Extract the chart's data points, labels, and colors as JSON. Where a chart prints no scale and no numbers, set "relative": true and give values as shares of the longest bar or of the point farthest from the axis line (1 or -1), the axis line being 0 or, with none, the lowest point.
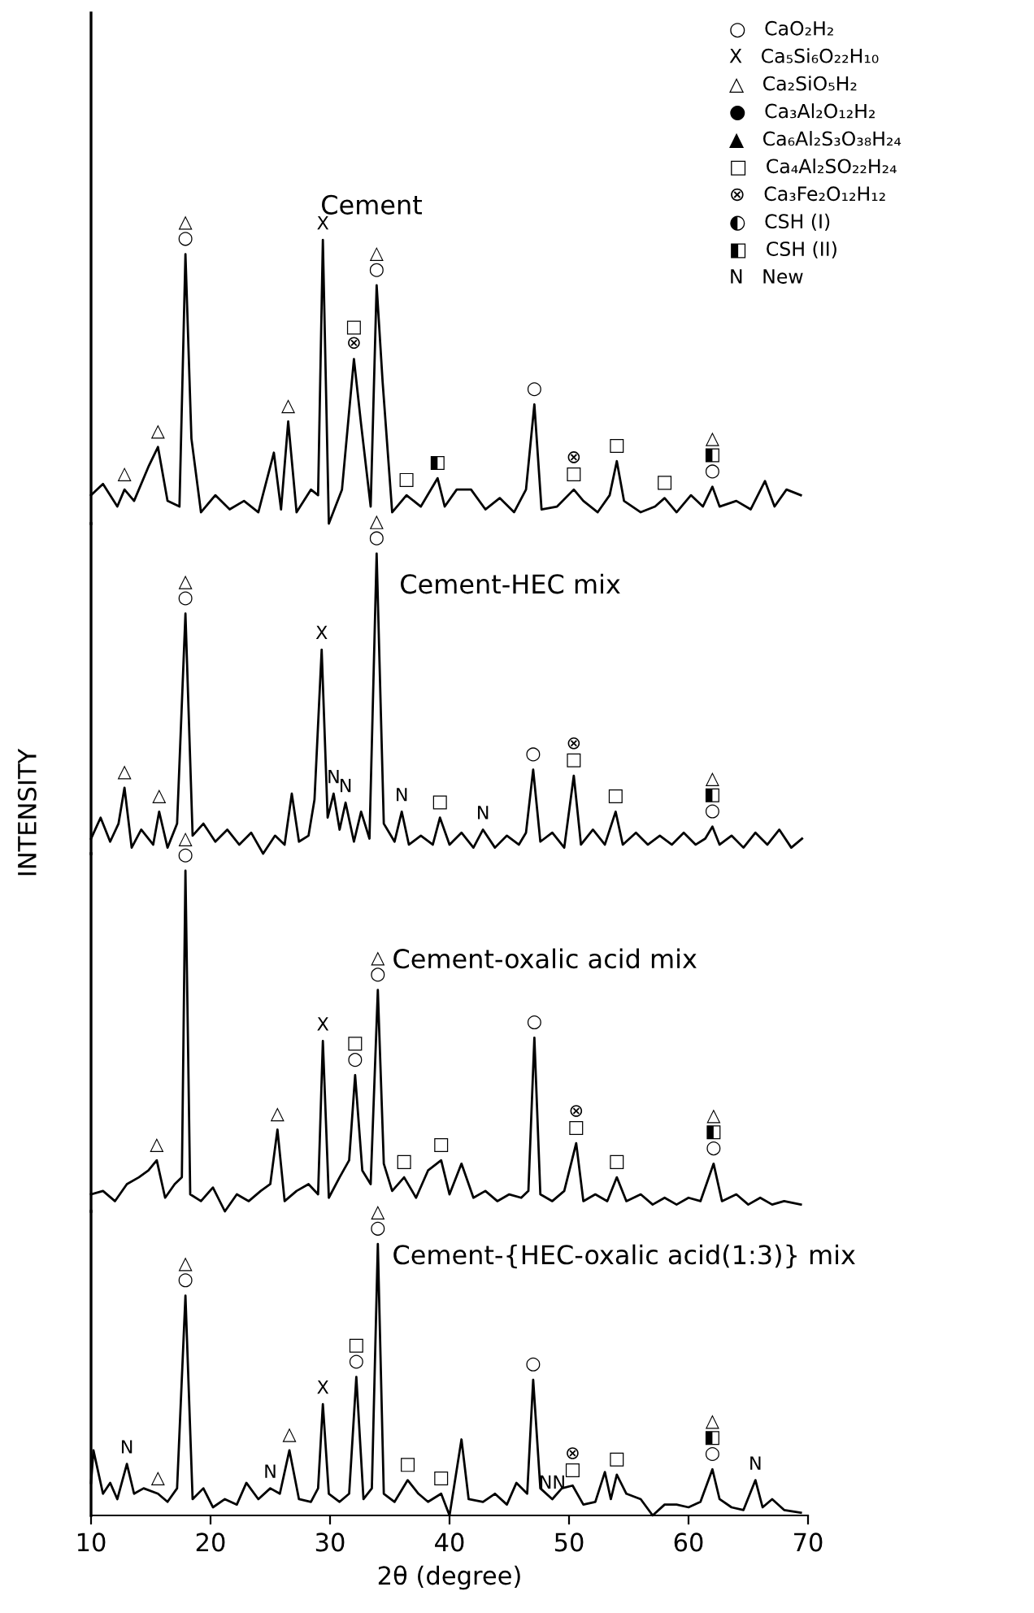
{
  "chart_data": [
    {
      "type": "line",
      "title": "Cement",
      "relative": true,
      "xlim": [
        10,
        70
      ],
      "xticks": [
        10,
        20,
        30,
        40,
        50,
        60,
        70
      ],
      "tick_labels": false,
      "series": [
        {
          "color": "#000000",
          "x": [
            10,
            11,
            12.2,
            12.8,
            13.6,
            14.8,
            15.6,
            16.4,
            17.4,
            17.9,
            18.4,
            19.2,
            20.4,
            21.6,
            22.8,
            24,
            25.3,
            25.9,
            26.5,
            27.2,
            28.4,
            29,
            29.4,
            29.9,
            31,
            32,
            32.6,
            33.4,
            33.9,
            34.4,
            35.2,
            36.4,
            37.6,
            39,
            39.6,
            40.6,
            41.8,
            43,
            44.2,
            45.4,
            46.4,
            47.1,
            47.7,
            49,
            50.4,
            51.2,
            52.4,
            53.4,
            54,
            54.6,
            56,
            57.2,
            58,
            59,
            60.2,
            61.2,
            62,
            62.6,
            64,
            65.2,
            66.4,
            67.2,
            68.2,
            69.4
          ],
          "values": [
            0.1,
            0.14,
            0.06,
            0.12,
            0.08,
            0.2,
            0.27,
            0.08,
            0.06,
            0.95,
            0.3,
            0.04,
            0.1,
            0.05,
            0.08,
            0.04,
            0.25,
            0.05,
            0.36,
            0.04,
            0.12,
            0.1,
            1.0,
            0,
            0.12,
            0.58,
            0.35,
            0.06,
            0.84,
            0.5,
            0.04,
            0.1,
            0.06,
            0.16,
            0.06,
            0.12,
            0.12,
            0.05,
            0.09,
            0.04,
            0.12,
            0.42,
            0.05,
            0.06,
            0.12,
            0.08,
            0.04,
            0.1,
            0.22,
            0.08,
            0.04,
            0.06,
            0.09,
            0.04,
            0.1,
            0.06,
            0.13,
            0.06,
            0.08,
            0.05,
            0.15,
            0.06,
            0.12,
            0.1
          ]
        }
      ],
      "annotations": [
        {
          "text": "△",
          "x": 12.8,
          "y": 0.12
        },
        {
          "text": "△",
          "x": 15.6,
          "y": 0.27
        },
        {
          "text": "△\n○",
          "x": 17.9,
          "y": 0.95
        },
        {
          "text": "△",
          "x": 26.5,
          "y": 0.36
        },
        {
          "text": "X",
          "x": 29.4,
          "y": 1.0
        },
        {
          "text": "□\n⊗",
          "x": 32,
          "y": 0.58
        },
        {
          "text": "△\n○",
          "x": 33.9,
          "y": 0.84
        },
        {
          "text": "□",
          "x": 36.4,
          "y": 0.1
        },
        {
          "text": "◧",
          "x": 39,
          "y": 0.16
        },
        {
          "text": "○",
          "x": 47.1,
          "y": 0.42
        },
        {
          "text": "⊗\n□",
          "x": 50.4,
          "y": 0.12
        },
        {
          "text": "□",
          "x": 54,
          "y": 0.22
        },
        {
          "text": "□",
          "x": 58,
          "y": 0.09
        },
        {
          "text": "△\n◧\n○",
          "x": 62,
          "y": 0.13
        },
        "○   CaO₂H₂",
        "X   Ca₅Si₆O₂₂H₁₀",
        "△   Ca₂SiO₅H₂",
        "●   Ca₃Al₂O₁₂H₂",
        "▲   Ca₆Al₂S₃O₃₈H₂₄",
        "□   Ca₄Al₂SO₂₂H₂₄",
        "⊗   Ca₃Fe₂O₁₂H₁₂",
        "◐   CSH (I)",
        "◧   CSH (II)",
        "N   New"
      ]
    },
    {
      "type": "line",
      "title": "Cement-HEC mix",
      "ylabel": "INTENSITY",
      "relative": true,
      "xlim": [
        10,
        70
      ],
      "xticks": [
        10,
        20,
        30,
        40,
        50,
        60,
        70
      ],
      "tick_labels": false,
      "series": [
        {
          "color": "#000000",
          "x": [
            10,
            10.8,
            11.6,
            12.3,
            12.8,
            13.4,
            14.2,
            15.2,
            15.7,
            16.4,
            17.2,
            17.9,
            18.5,
            19.4,
            20.4,
            21.4,
            22.4,
            23.4,
            24.4,
            25.4,
            26.2,
            26.8,
            27.4,
            28.2,
            28.7,
            29.3,
            29.8,
            30.3,
            30.8,
            31.3,
            32,
            32.6,
            33.3,
            33.9,
            34.5,
            35.4,
            36,
            36.6,
            37.6,
            38.6,
            39.2,
            40,
            41,
            42,
            42.8,
            43.8,
            44.8,
            45.8,
            46.4,
            47,
            47.6,
            48.6,
            49.6,
            50.4,
            51,
            52,
            53,
            53.9,
            54.5,
            55.6,
            56.6,
            57.6,
            58.6,
            59.6,
            60.6,
            61.4,
            62,
            62.6,
            63.6,
            64.6,
            65.6,
            66.6,
            67.6,
            68.6,
            69.5
          ],
          "values": [
            0.05,
            0.12,
            0.04,
            0.1,
            0.22,
            0.02,
            0.08,
            0.03,
            0.14,
            0.02,
            0.1,
            0.8,
            0.06,
            0.1,
            0.04,
            0.08,
            0.03,
            0.07,
            0,
            0.06,
            0.03,
            0.2,
            0.04,
            0.06,
            0.18,
            0.68,
            0.12,
            0.2,
            0.08,
            0.17,
            0.04,
            0.14,
            0.05,
            1.0,
            0.1,
            0.04,
            0.14,
            0.03,
            0.06,
            0.03,
            0.12,
            0.03,
            0.07,
            0.02,
            0.08,
            0.02,
            0.06,
            0.03,
            0.07,
            0.28,
            0.04,
            0.07,
            0.02,
            0.26,
            0.03,
            0.08,
            0.03,
            0.14,
            0.03,
            0.07,
            0.03,
            0.06,
            0.03,
            0.07,
            0.03,
            0.05,
            0.09,
            0.03,
            0.06,
            0.02,
            0.07,
            0.03,
            0.08,
            0.02,
            0.05
          ]
        }
      ],
      "annotations": [
        {
          "text": "△",
          "x": 12.8,
          "y": 0.22
        },
        {
          "text": "△",
          "x": 15.7,
          "y": 0.14
        },
        {
          "text": "△\n○",
          "x": 17.9,
          "y": 0.8
        },
        {
          "text": "X",
          "x": 29.3,
          "y": 0.68
        },
        {
          "text": "N",
          "x": 30.3,
          "y": 0.2
        },
        {
          "text": "N",
          "x": 31.3,
          "y": 0.17
        },
        {
          "text": "△\n○",
          "x": 33.9,
          "y": 1.0
        },
        {
          "text": "N",
          "x": 36,
          "y": 0.14
        },
        {
          "text": "□",
          "x": 39.2,
          "y": 0.12
        },
        {
          "text": "N",
          "x": 42.8,
          "y": 0.08
        },
        {
          "text": "○",
          "x": 47,
          "y": 0.28
        },
        {
          "text": "⊗\n□",
          "x": 50.4,
          "y": 0.26
        },
        {
          "text": "□",
          "x": 53.9,
          "y": 0.14
        },
        {
          "text": "△\n◧\n○",
          "x": 62,
          "y": 0.09
        }
      ]
    },
    {
      "type": "line",
      "title": "Cement-oxalic acid mix",
      "relative": true,
      "xlim": [
        10,
        70
      ],
      "xticks": [
        10,
        20,
        30,
        40,
        50,
        60,
        70
      ],
      "tick_labels": false,
      "series": [
        {
          "color": "#000000",
          "x": [
            10,
            11,
            12,
            13,
            14,
            14.8,
            15.5,
            16.2,
            17,
            17.6,
            17.9,
            18.3,
            19.2,
            20.2,
            21.2,
            22.2,
            23.2,
            24.2,
            25,
            25.6,
            26.2,
            27.2,
            28.2,
            29,
            29.4,
            29.9,
            30.8,
            31.6,
            32.1,
            32.7,
            33.4,
            34,
            34.5,
            35.2,
            36.2,
            37.2,
            38.2,
            39.3,
            40,
            41,
            42,
            43,
            44,
            45,
            46,
            46.6,
            47.1,
            47.6,
            48.6,
            49.6,
            50.6,
            51.2,
            52.2,
            53.2,
            54,
            54.8,
            56,
            57,
            58,
            59,
            60,
            61,
            62.1,
            62.8,
            64,
            65,
            66,
            67,
            68,
            69.4
          ],
          "values": [
            0.05,
            0.06,
            0.03,
            0.08,
            0.1,
            0.12,
            0.15,
            0.04,
            0.08,
            0.1,
            1.0,
            0.05,
            0.03,
            0.07,
            0,
            0.05,
            0.03,
            0.06,
            0.08,
            0.24,
            0.03,
            0.06,
            0.08,
            0.05,
            0.5,
            0.04,
            0.1,
            0.15,
            0.4,
            0.12,
            0.08,
            0.65,
            0.14,
            0.06,
            0.1,
            0.04,
            0.12,
            0.15,
            0.05,
            0.14,
            0.04,
            0.06,
            0.03,
            0.05,
            0.04,
            0.06,
            0.51,
            0.05,
            0.03,
            0.06,
            0.2,
            0.03,
            0.05,
            0.03,
            0.1,
            0.03,
            0.05,
            0.02,
            0.04,
            0.02,
            0.04,
            0.03,
            0.14,
            0.03,
            0.05,
            0.02,
            0.04,
            0.02,
            0.03,
            0.02
          ]
        }
      ],
      "annotations": [
        {
          "text": "△",
          "x": 15.5,
          "y": 0.15
        },
        {
          "text": "△\n○",
          "x": 17.9,
          "y": 1.0
        },
        {
          "text": "△",
          "x": 25.6,
          "y": 0.24
        },
        {
          "text": "X",
          "x": 29.4,
          "y": 0.5
        },
        {
          "text": "□\n○",
          "x": 32.1,
          "y": 0.4
        },
        {
          "text": "△\n○",
          "x": 34,
          "y": 0.65
        },
        {
          "text": "□",
          "x": 36.2,
          "y": 0.1
        },
        {
          "text": "□",
          "x": 39.3,
          "y": 0.15
        },
        {
          "text": "○",
          "x": 47.1,
          "y": 0.51
        },
        {
          "text": "⊗\n□",
          "x": 50.6,
          "y": 0.2
        },
        {
          "text": "□",
          "x": 54,
          "y": 0.1
        },
        {
          "text": "△\n◧\n○",
          "x": 62.1,
          "y": 0.14
        }
      ]
    },
    {
      "type": "line",
      "title": "Cement-{HEC-oxalic acid(1:3)} mix",
      "xlabel": "2θ (degree)",
      "relative": true,
      "xlim": [
        10,
        70
      ],
      "xticks": [
        10,
        20,
        30,
        40,
        50,
        60,
        70
      ],
      "tick_labels": "x",
      "series": [
        {
          "color": "#000000",
          "x": [
            10,
            10.2,
            11,
            11.6,
            12.2,
            13,
            13.6,
            14.4,
            15.6,
            16.4,
            17.2,
            17.9,
            18.5,
            19.4,
            20.2,
            21.2,
            22.2,
            23,
            24,
            25,
            25.8,
            26.6,
            27.4,
            28.4,
            29,
            29.4,
            29.9,
            30.8,
            31.6,
            32.2,
            32.8,
            33.5,
            34,
            34.5,
            35.4,
            36.5,
            37.4,
            38.2,
            39.3,
            40,
            41,
            41.6,
            42.8,
            43.8,
            44.8,
            45.6,
            46.5,
            47,
            47.6,
            48.6,
            49.4,
            50.3,
            51.2,
            52.2,
            53,
            53.5,
            54,
            54.8,
            56,
            57,
            58,
            59,
            60,
            61,
            62,
            62.6,
            63.6,
            64.6,
            65.6,
            66.2,
            67,
            68,
            69.4
          ],
          "values": [
            0.12,
            0.24,
            0.08,
            0.12,
            0.06,
            0.19,
            0.08,
            0.1,
            0.08,
            0.05,
            0.1,
            0.81,
            0.06,
            0.1,
            0.03,
            0.06,
            0.04,
            0.12,
            0.06,
            0.1,
            0.08,
            0.24,
            0.06,
            0.05,
            0.1,
            0.41,
            0.08,
            0.05,
            0.08,
            0.51,
            0.06,
            0.1,
            1.0,
            0.08,
            0.05,
            0.13,
            0.08,
            0.05,
            0.08,
            0,
            0.28,
            0.06,
            0.05,
            0.08,
            0.04,
            0.12,
            0.08,
            0.5,
            0.1,
            0.06,
            0.1,
            0.11,
            0.04,
            0.05,
            0.16,
            0.06,
            0.15,
            0.08,
            0.06,
            0,
            0.04,
            0.04,
            0.03,
            0.05,
            0.17,
            0.06,
            0.03,
            0.02,
            0.13,
            0.03,
            0.06,
            0.02,
            0.01
          ]
        }
      ],
      "annotations": [
        {
          "text": "N",
          "x": 13,
          "y": 0.19
        },
        {
          "text": "△",
          "x": 15.6,
          "y": 0.08
        },
        {
          "text": "△\n○",
          "x": 17.9,
          "y": 0.81
        },
        {
          "text": "N",
          "x": 25,
          "y": 0.1
        },
        {
          "text": "△",
          "x": 26.6,
          "y": 0.24
        },
        {
          "text": "X",
          "x": 29.4,
          "y": 0.41
        },
        {
          "text": "□\n○",
          "x": 32.2,
          "y": 0.51
        },
        {
          "text": "△\n○",
          "x": 34,
          "y": 1.0
        },
        {
          "text": "□",
          "x": 36.5,
          "y": 0.13
        },
        {
          "text": "□",
          "x": 39.3,
          "y": 0.08
        },
        {
          "text": "○",
          "x": 47,
          "y": 0.5
        },
        {
          "text": "NN",
          "x": 48.6,
          "y": 0.06
        },
        {
          "text": "⊗\n□",
          "x": 50.3,
          "y": 0.11
        },
        {
          "text": "□",
          "x": 54,
          "y": 0.15
        },
        {
          "text": "△\n◧\n○",
          "x": 62,
          "y": 0.17
        },
        {
          "text": "N",
          "x": 65.6,
          "y": 0.13
        }
      ]
    }
  ]
}
